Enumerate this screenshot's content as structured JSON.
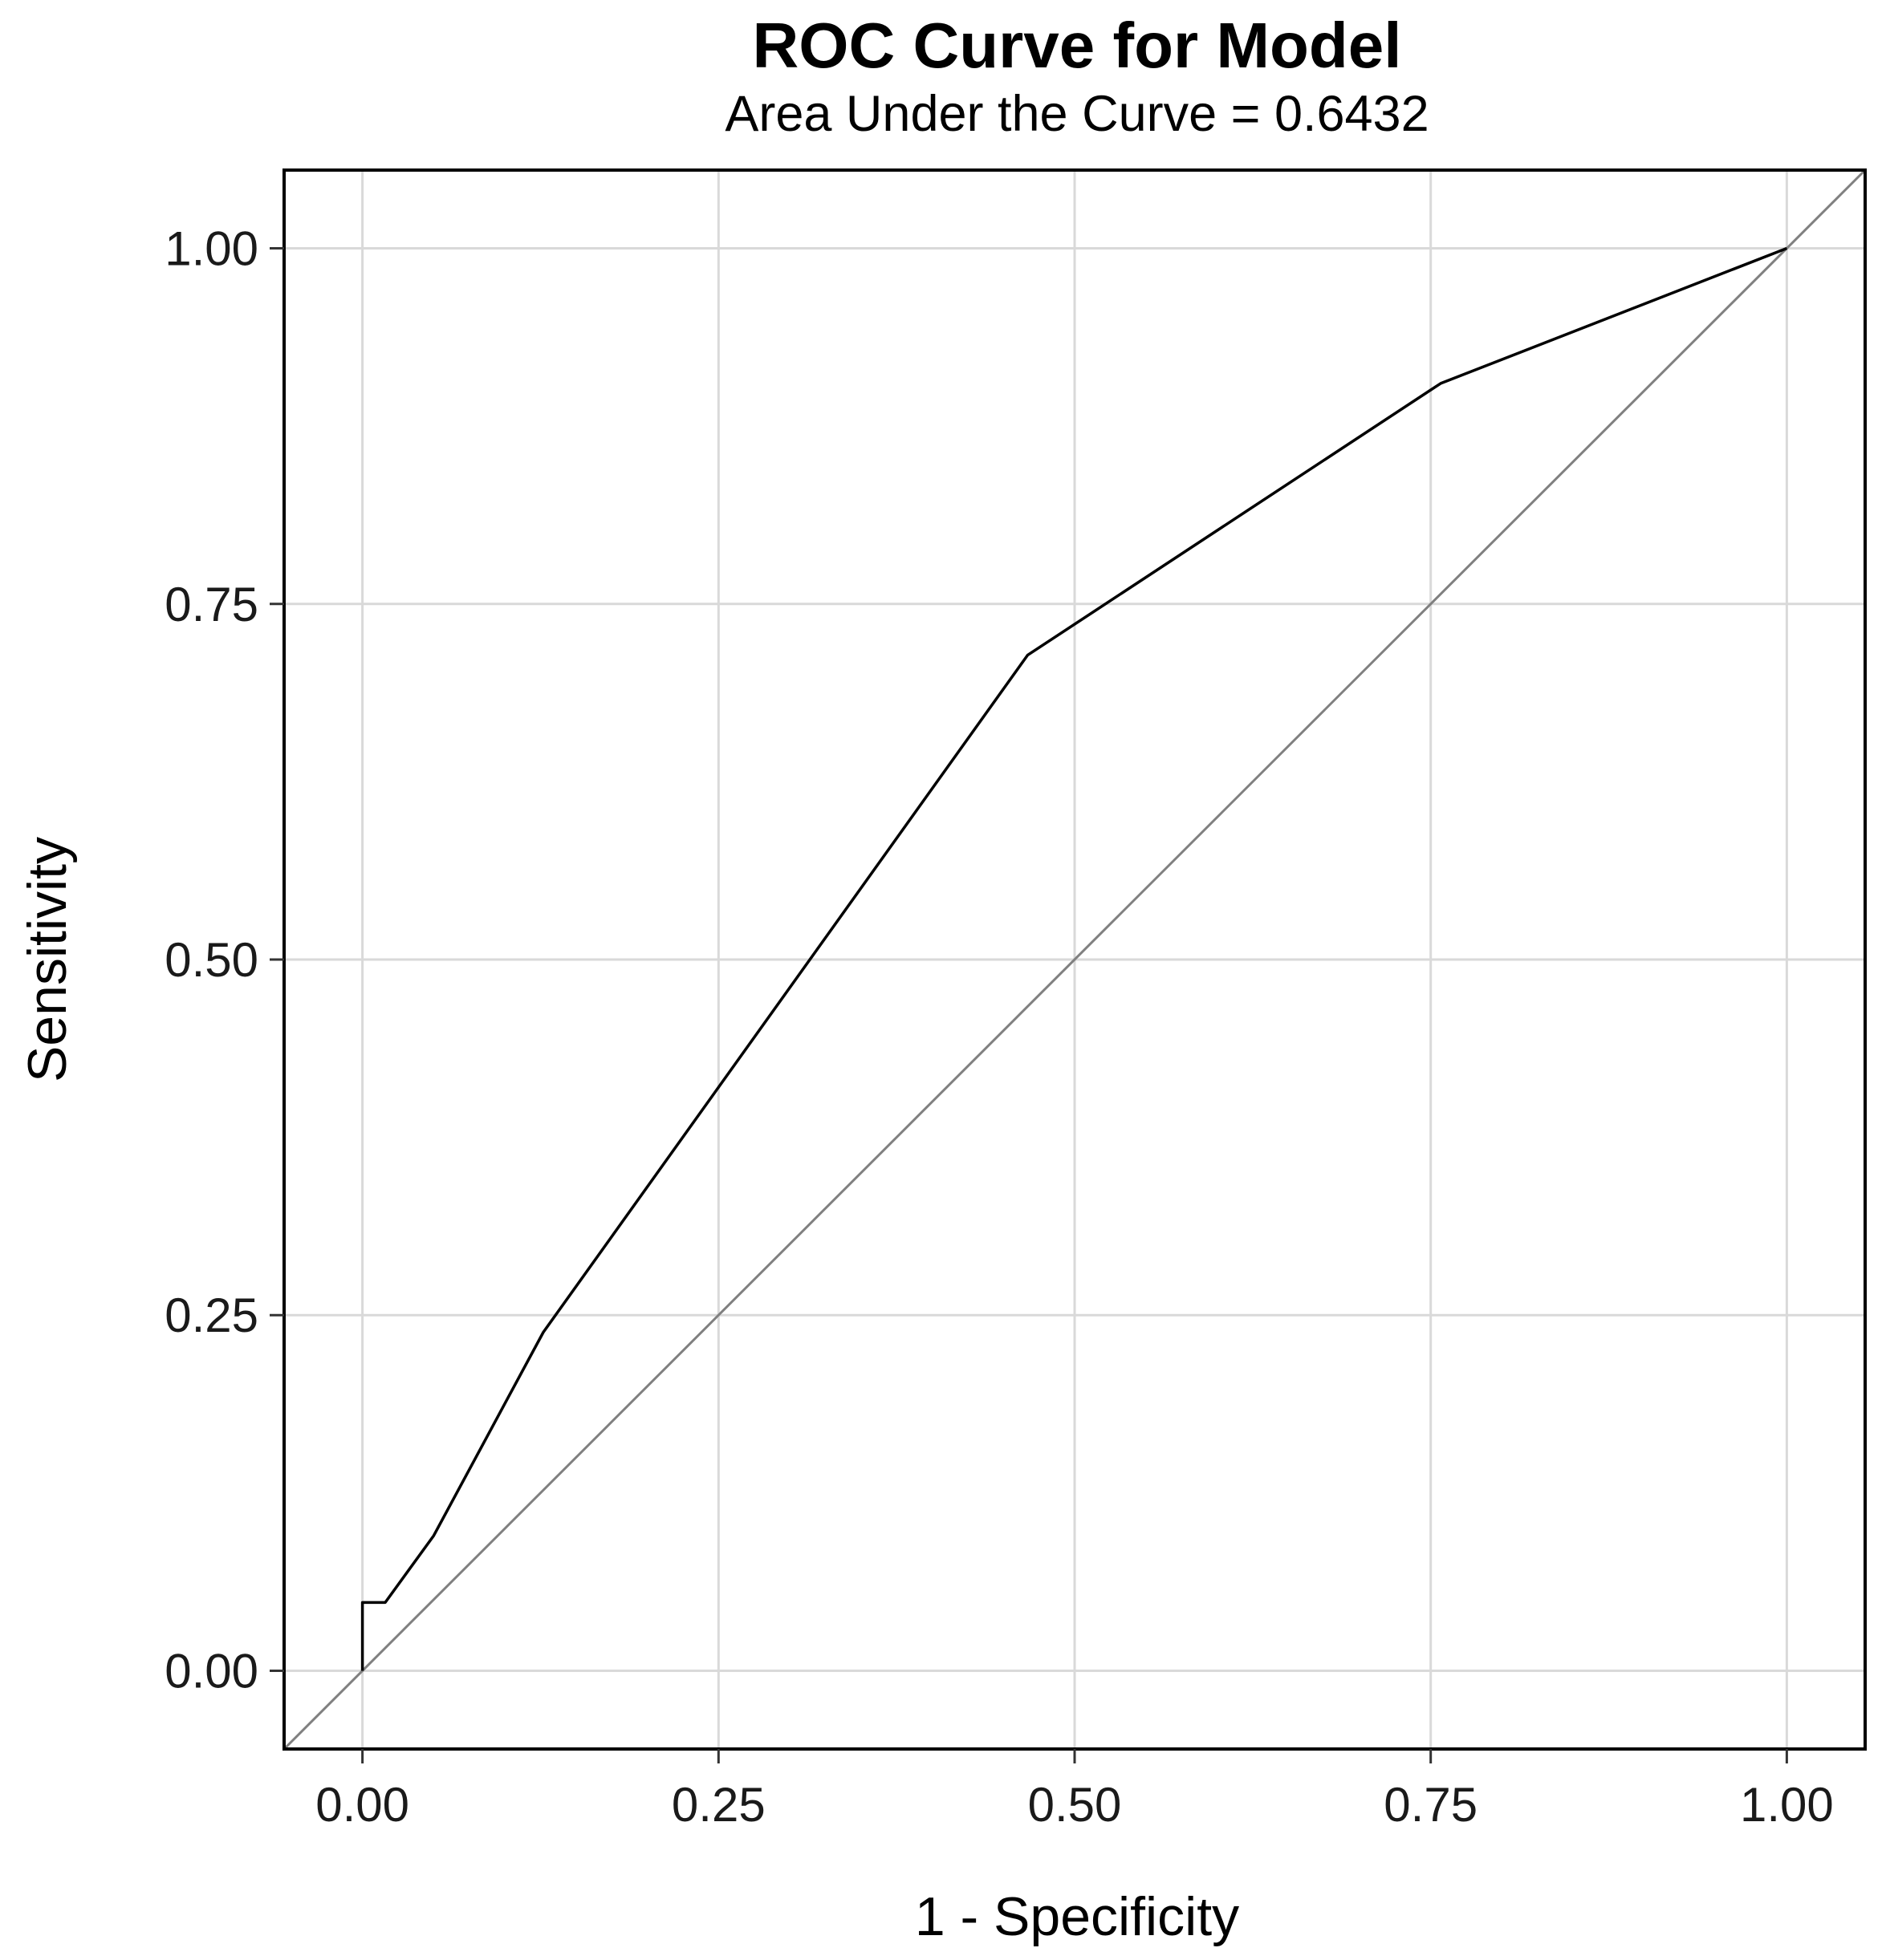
{
  "chart_data": {
    "type": "line",
    "title": "ROC Curve for Model",
    "subtitle": "Area Under the Curve = 0.6432",
    "xlabel": "1 - Specificity",
    "ylabel": "Sensitivity",
    "xlim": [
      -0.055,
      1.055
    ],
    "ylim": [
      -0.055,
      1.055
    ],
    "x_ticks": [
      0,
      0.25,
      0.5,
      0.75,
      1
    ],
    "y_ticks": [
      0,
      0.25,
      0.5,
      0.75,
      1
    ],
    "x_tick_labels": [
      "0.00",
      "0.25",
      "0.50",
      "0.75",
      "1.00"
    ],
    "y_tick_labels": [
      "0.00",
      "0.25",
      "0.50",
      "0.75",
      "1.00"
    ],
    "grid": true,
    "legend": "none",
    "series": [
      {
        "x": [
          0.0,
          0.0,
          0.016,
          0.05,
          0.127,
          0.467,
          0.757,
          1.0
        ],
        "y": [
          0.0,
          0.048,
          0.048,
          0.095,
          0.238,
          0.714,
          0.905,
          1.0
        ],
        "color": "#000000"
      }
    ],
    "reference_line": {
      "x": [
        -0.055,
        1.055
      ],
      "y": [
        -0.055,
        1.055
      ],
      "color": "#808080"
    }
  }
}
